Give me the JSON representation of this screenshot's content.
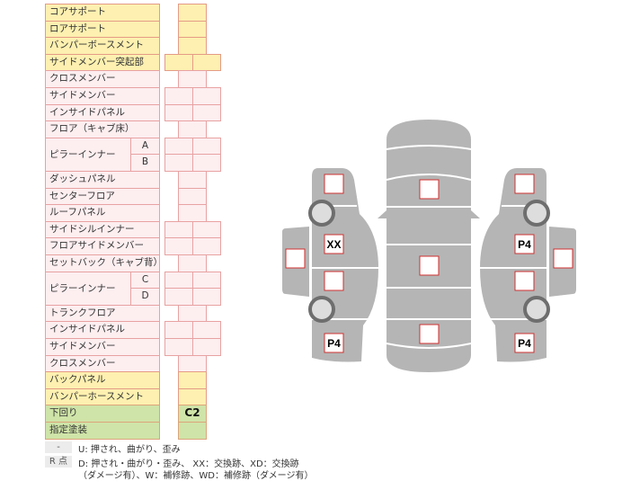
{
  "colors": {
    "yellow": "#fdf0b0",
    "pink": "#fdeef0",
    "green": "#cfe4a8",
    "panel": "#b5b5b5",
    "mark_border": "#d03030"
  },
  "rows": [
    {
      "label": "コアサポート",
      "fill": "yellow",
      "cells": 1
    },
    {
      "label": "ロアサポート",
      "fill": "yellow",
      "cells": 1
    },
    {
      "label": "バンパーボースメント",
      "fill": "yellow",
      "cells": 1
    },
    {
      "label": "サイドメンバー突起部",
      "fill": "yellow",
      "cells": 2
    },
    {
      "label": "クロスメンバー",
      "fill": "pink",
      "cells": 1
    },
    {
      "label": "サイドメンバー",
      "fill": "pink",
      "cells": 2
    },
    {
      "label": "インサイドパネル",
      "fill": "pink",
      "cells": 2
    },
    {
      "label": "フロア（キャブ床）",
      "fill": "pink",
      "cells": 1
    },
    {
      "label": "ピラーインナー",
      "sub": "A",
      "fill": "pink",
      "cells": 2,
      "group_start": true
    },
    {
      "label": "",
      "sub": "B",
      "fill": "pink",
      "cells": 2,
      "group_cont": true
    },
    {
      "label": "ダッシュパネル",
      "fill": "pink",
      "cells": 1
    },
    {
      "label": "センターフロア",
      "fill": "pink",
      "cells": 1
    },
    {
      "label": "ルーフパネル",
      "fill": "pink",
      "cells": 1
    },
    {
      "label": "サイドシルインナー",
      "fill": "pink",
      "cells": 2
    },
    {
      "label": "フロアサイドメンバー",
      "fill": "pink",
      "cells": 2
    },
    {
      "label": "セットバック（キャブ背）",
      "fill": "pink",
      "cells": 1
    },
    {
      "label": "ピラーインナー",
      "sub": "C",
      "fill": "pink",
      "cells": 2,
      "group_start": true
    },
    {
      "label": "",
      "sub": "D",
      "fill": "pink",
      "cells": 2,
      "group_cont": true
    },
    {
      "label": "トランクフロア",
      "fill": "pink",
      "cells": 1
    },
    {
      "label": "インサイドパネル",
      "fill": "pink",
      "cells": 2
    },
    {
      "label": "サイドメンバー",
      "fill": "pink",
      "cells": 2
    },
    {
      "label": "クロスメンバー",
      "fill": "pink",
      "cells": 1
    },
    {
      "label": "バックパネル",
      "fill": "yellow",
      "cells": 1
    },
    {
      "label": "バンパーホースメント",
      "fill": "yellow",
      "cells": 1
    },
    {
      "label": "下回り",
      "fill": "green",
      "cells": 1,
      "value": "C2"
    },
    {
      "label": "指定塗装",
      "fill": "green",
      "cells": 1
    }
  ],
  "legend": [
    {
      "key": "-",
      "text": "U: 押され、曲がり、歪み"
    },
    {
      "key": "R 点",
      "text": "D: 押され・曲がり・歪み、 XX：交換跡、XD：交換跡",
      "text2": "（ダメージ有）、W：補修跡、WD：補修跡（ダメージ有）"
    }
  ],
  "diagram": {
    "marks": {
      "left_front": "",
      "left_front_door": "XX",
      "left_rear_door": "",
      "left_rear": "P4",
      "left_door_panel": "",
      "center_front": "",
      "center_middle": "",
      "center_rear": "",
      "right_front": "",
      "right_front_door": "P4",
      "right_rear_door": "",
      "right_rear": "P4",
      "right_door_panel": ""
    }
  }
}
